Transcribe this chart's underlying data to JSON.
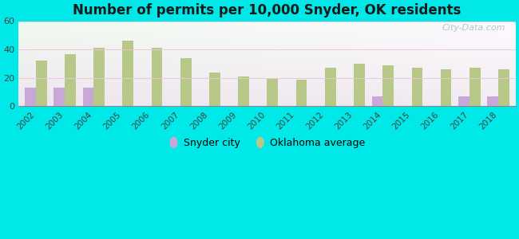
{
  "title": "Number of permits per 10,000 Snyder, OK residents",
  "years": [
    2002,
    2003,
    2004,
    2005,
    2006,
    2007,
    2008,
    2009,
    2010,
    2011,
    2012,
    2013,
    2014,
    2015,
    2016,
    2017,
    2018
  ],
  "snyder_values": [
    13,
    13,
    13,
    0,
    0,
    0,
    0,
    0,
    0,
    0,
    0,
    0,
    7,
    0,
    0,
    7,
    7
  ],
  "oklahoma_values": [
    32,
    37,
    41,
    46,
    41,
    34,
    24,
    21,
    20,
    19,
    27,
    30,
    29,
    27,
    26,
    27,
    26
  ],
  "snyder_color": "#c8a8d8",
  "oklahoma_color": "#b8c888",
  "bg_color_topleft": "#d0f0e8",
  "bg_color_topright": "#f0faf8",
  "bg_color_bottom": "#c8ecd8",
  "outer_background": "#00e8e8",
  "ylim": [
    0,
    60
  ],
  "yticks": [
    0,
    20,
    40,
    60
  ],
  "legend_snyder": "Snyder city",
  "legend_oklahoma": "Oklahoma average",
  "bar_width": 0.38,
  "watermark": "City-Data.com",
  "watermark_color": "#a8b8c4"
}
